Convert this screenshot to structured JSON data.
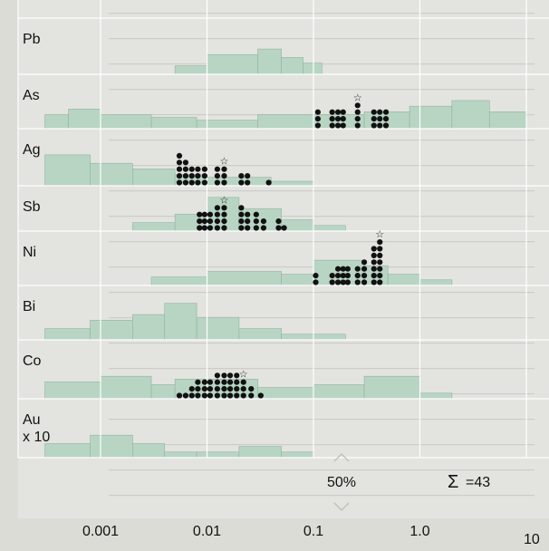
{
  "chart_data": {
    "type": "histogram",
    "x_scale": "log",
    "xlim": [
      0.0003,
      10
    ],
    "x_ticks": [
      {
        "value": 0.001,
        "label": "0.001"
      },
      {
        "value": 0.01,
        "label": "0.01"
      },
      {
        "value": 0.1,
        "label": "0.1"
      },
      {
        "value": 1.0,
        "label": "1.0"
      },
      {
        "value": 10,
        "label": "10"
      }
    ],
    "grid": true,
    "scale_annotation": "50%",
    "sum_symbol": "Σ",
    "total_annotation": "=43",
    "colors": {
      "histogram_fill": "#b8d5c4",
      "histogram_edge": "#8fb3a0",
      "grid": "#ffffff",
      "dot": "#111111"
    },
    "rows": [
      {
        "label": "Pb",
        "bins": [
          {
            "from": 0.005,
            "to": 0.01,
            "pct": 15
          },
          {
            "from": 0.01,
            "to": 0.03,
            "pct": 35
          },
          {
            "from": 0.03,
            "to": 0.05,
            "pct": 45
          },
          {
            "from": 0.05,
            "to": 0.08,
            "pct": 30
          },
          {
            "from": 0.08,
            "to": 0.12,
            "pct": 20
          }
        ],
        "samples": []
      },
      {
        "label": "As",
        "bins": [
          {
            "from": 0.0003,
            "to": 0.0005,
            "pct": 25
          },
          {
            "from": 0.0005,
            "to": 0.001,
            "pct": 35
          },
          {
            "from": 0.001,
            "to": 0.003,
            "pct": 25
          },
          {
            "from": 0.003,
            "to": 0.008,
            "pct": 20
          },
          {
            "from": 0.008,
            "to": 0.03,
            "pct": 15
          },
          {
            "from": 0.03,
            "to": 0.3,
            "pct": 25
          },
          {
            "from": 0.3,
            "to": 0.8,
            "pct": 30
          },
          {
            "from": 0.8,
            "to": 2,
            "pct": 40
          },
          {
            "from": 2,
            "to": 4.5,
            "pct": 50
          },
          {
            "from": 4.5,
            "to": 10,
            "pct": 30
          }
        ],
        "samples": [
          {
            "value": 0.11,
            "count": 3
          },
          {
            "value": 0.15,
            "count": 3
          },
          {
            "value": 0.17,
            "count": 3
          },
          {
            "value": 0.19,
            "count": 3
          },
          {
            "value": 0.26,
            "count": 4
          },
          {
            "value": 0.37,
            "count": 3
          },
          {
            "value": 0.42,
            "count": 3
          },
          {
            "value": 0.48,
            "count": 3
          }
        ],
        "median": 0.26
      },
      {
        "label": "Ag",
        "bins": [
          {
            "from": 0.0003,
            "to": 0.0008,
            "pct": 55
          },
          {
            "from": 0.0008,
            "to": 0.002,
            "pct": 40
          },
          {
            "from": 0.002,
            "to": 0.005,
            "pct": 30
          },
          {
            "from": 0.005,
            "to": 0.01,
            "pct": 20
          },
          {
            "from": 0.01,
            "to": 0.04,
            "pct": 15
          },
          {
            "from": 0.04,
            "to": 0.1,
            "pct": 8
          }
        ],
        "samples": [
          {
            "value": 0.0055,
            "count": 5
          },
          {
            "value": 0.0063,
            "count": 4
          },
          {
            "value": 0.0072,
            "count": 3
          },
          {
            "value": 0.0082,
            "count": 3
          },
          {
            "value": 0.0095,
            "count": 3
          },
          {
            "value": 0.0125,
            "count": 3
          },
          {
            "value": 0.0145,
            "count": 3
          },
          {
            "value": 0.021,
            "count": 2
          },
          {
            "value": 0.024,
            "count": 2
          },
          {
            "value": 0.038,
            "count": 1
          }
        ],
        "median": 0.0145
      },
      {
        "label": "Sb",
        "bins": [
          {
            "from": 0.002,
            "to": 0.005,
            "pct": 15
          },
          {
            "from": 0.005,
            "to": 0.01,
            "pct": 30
          },
          {
            "from": 0.01,
            "to": 0.02,
            "pct": 60
          },
          {
            "from": 0.02,
            "to": 0.05,
            "pct": 40
          },
          {
            "from": 0.05,
            "to": 0.1,
            "pct": 20
          },
          {
            "from": 0.1,
            "to": 0.2,
            "pct": 10
          }
        ],
        "samples": [
          {
            "value": 0.0085,
            "count": 3
          },
          {
            "value": 0.0095,
            "count": 3
          },
          {
            "value": 0.0107,
            "count": 3
          },
          {
            "value": 0.0125,
            "count": 4
          },
          {
            "value": 0.0145,
            "count": 4
          },
          {
            "value": 0.021,
            "count": 4
          },
          {
            "value": 0.024,
            "count": 3
          },
          {
            "value": 0.029,
            "count": 3
          },
          {
            "value": 0.034,
            "count": 2
          },
          {
            "value": 0.047,
            "count": 2
          },
          {
            "value": 0.053,
            "count": 1
          }
        ],
        "median": 0.0145
      },
      {
        "label": "Ni",
        "bins": [
          {
            "from": 0.003,
            "to": 0.01,
            "pct": 15
          },
          {
            "from": 0.01,
            "to": 0.05,
            "pct": 25
          },
          {
            "from": 0.05,
            "to": 0.1,
            "pct": 20
          },
          {
            "from": 0.1,
            "to": 0.3,
            "pct": 45
          },
          {
            "from": 0.3,
            "to": 0.5,
            "pct": 35
          },
          {
            "from": 0.5,
            "to": 1,
            "pct": 20
          },
          {
            "from": 1,
            "to": 2,
            "pct": 10
          }
        ],
        "samples": [
          {
            "value": 0.105,
            "count": 2
          },
          {
            "value": 0.15,
            "count": 2
          },
          {
            "value": 0.17,
            "count": 3
          },
          {
            "value": 0.19,
            "count": 3
          },
          {
            "value": 0.21,
            "count": 3
          },
          {
            "value": 0.26,
            "count": 3
          },
          {
            "value": 0.3,
            "count": 4
          },
          {
            "value": 0.37,
            "count": 6
          },
          {
            "value": 0.42,
            "count": 7
          }
        ],
        "median": 0.42
      },
      {
        "label": "Bi",
        "bins": [
          {
            "from": 0.0003,
            "to": 0.0008,
            "pct": 20
          },
          {
            "from": 0.0008,
            "to": 0.002,
            "pct": 35
          },
          {
            "from": 0.002,
            "to": 0.004,
            "pct": 45
          },
          {
            "from": 0.004,
            "to": 0.008,
            "pct": 65
          },
          {
            "from": 0.008,
            "to": 0.02,
            "pct": 40
          },
          {
            "from": 0.02,
            "to": 0.05,
            "pct": 20
          },
          {
            "from": 0.05,
            "to": 0.2,
            "pct": 10
          }
        ],
        "samples": []
      },
      {
        "label": "Co",
        "bins": [
          {
            "from": 0.0003,
            "to": 0.001,
            "pct": 30
          },
          {
            "from": 0.001,
            "to": 0.003,
            "pct": 40
          },
          {
            "from": 0.003,
            "to": 0.005,
            "pct": 25
          },
          {
            "from": 0.005,
            "to": 0.03,
            "pct": 35
          },
          {
            "from": 0.03,
            "to": 0.1,
            "pct": 20
          },
          {
            "from": 0.1,
            "to": 0.3,
            "pct": 25
          },
          {
            "from": 0.3,
            "to": 1,
            "pct": 40
          },
          {
            "from": 1,
            "to": 2,
            "pct": 10
          }
        ],
        "samples": [
          {
            "value": 0.0055,
            "count": 1
          },
          {
            "value": 0.0063,
            "count": 1
          },
          {
            "value": 0.0072,
            "count": 2
          },
          {
            "value": 0.0082,
            "count": 3
          },
          {
            "value": 0.0095,
            "count": 3
          },
          {
            "value": 0.0107,
            "count": 3
          },
          {
            "value": 0.0125,
            "count": 4
          },
          {
            "value": 0.0145,
            "count": 4
          },
          {
            "value": 0.0165,
            "count": 4
          },
          {
            "value": 0.019,
            "count": 4
          },
          {
            "value": 0.022,
            "count": 3
          },
          {
            "value": 0.026,
            "count": 2
          },
          {
            "value": 0.032,
            "count": 1
          }
        ],
        "median": 0.022
      },
      {
        "label": "Au",
        "label_line2": "x 10",
        "bins": [
          {
            "from": 0.0003,
            "to": 0.0008,
            "pct": 25
          },
          {
            "from": 0.0008,
            "to": 0.002,
            "pct": 40
          },
          {
            "from": 0.002,
            "to": 0.004,
            "pct": 25
          },
          {
            "from": 0.004,
            "to": 0.008,
            "pct": 10
          },
          {
            "from": 0.008,
            "to": 0.02,
            "pct": 10
          },
          {
            "from": 0.02,
            "to": 0.05,
            "pct": 20
          },
          {
            "from": 0.05,
            "to": 0.1,
            "pct": 10
          }
        ],
        "samples": []
      }
    ]
  }
}
